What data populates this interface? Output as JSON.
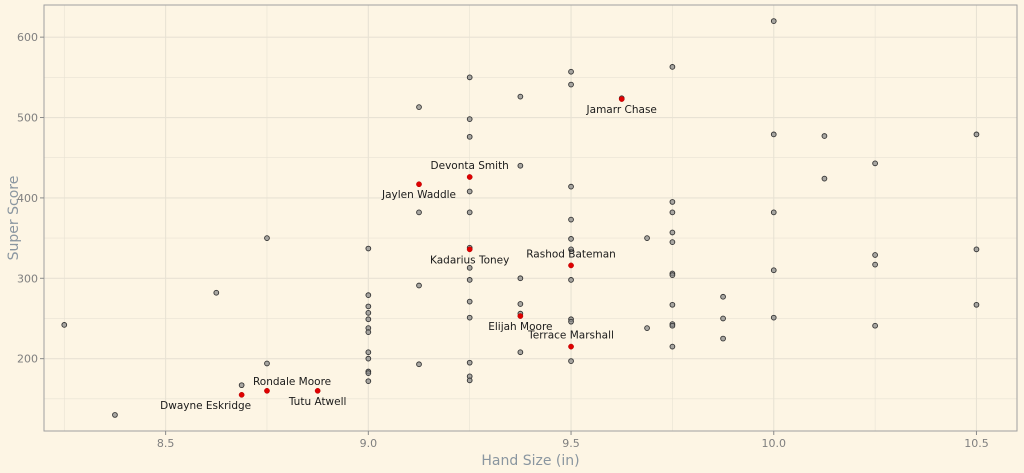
{
  "chart_data": {
    "type": "scatter",
    "title": "",
    "xlabel": "Hand Size (in)",
    "ylabel": "Super Score",
    "xlim": [
      8.2,
      10.6
    ],
    "ylim": [
      110,
      640
    ],
    "x_ticks": [
      8.5,
      9.0,
      9.5,
      10.0,
      10.5
    ],
    "x_tick_labels": [
      "8.5",
      "9.0",
      "9.5",
      "10.0",
      "10.5"
    ],
    "y_ticks": [
      200,
      300,
      400,
      500,
      600
    ],
    "y_tick_labels": [
      "200",
      "300",
      "400",
      "500",
      "600"
    ],
    "grid": true,
    "colors": {
      "background": "#fdf5e4",
      "panel_border": "#a0a0a0",
      "grid": "#e8e2d4",
      "point": "#4a4a4a",
      "highlight": "#e00000"
    },
    "series": [
      {
        "points": [
          {
            "x": 8.25,
            "y": 242
          },
          {
            "x": 8.375,
            "y": 130
          },
          {
            "x": 8.625,
            "y": 282
          },
          {
            "x": 8.6875,
            "y": 167
          },
          {
            "x": 8.75,
            "y": 350
          },
          {
            "x": 8.75,
            "y": 194
          },
          {
            "x": 9.0,
            "y": 337
          },
          {
            "x": 9.0,
            "y": 279
          },
          {
            "x": 9.0,
            "y": 265
          },
          {
            "x": 9.0,
            "y": 257
          },
          {
            "x": 9.0,
            "y": 249
          },
          {
            "x": 9.0,
            "y": 238
          },
          {
            "x": 9.0,
            "y": 233
          },
          {
            "x": 9.0,
            "y": 208
          },
          {
            "x": 9.0,
            "y": 200
          },
          {
            "x": 9.0,
            "y": 184
          },
          {
            "x": 9.0,
            "y": 182
          },
          {
            "x": 9.0,
            "y": 172
          },
          {
            "x": 9.125,
            "y": 513
          },
          {
            "x": 9.125,
            "y": 382
          },
          {
            "x": 9.125,
            "y": 291
          },
          {
            "x": 9.125,
            "y": 193
          },
          {
            "x": 9.25,
            "y": 550
          },
          {
            "x": 9.25,
            "y": 498
          },
          {
            "x": 9.25,
            "y": 476
          },
          {
            "x": 9.25,
            "y": 408
          },
          {
            "x": 9.25,
            "y": 382
          },
          {
            "x": 9.25,
            "y": 338
          },
          {
            "x": 9.25,
            "y": 313
          },
          {
            "x": 9.25,
            "y": 298
          },
          {
            "x": 9.25,
            "y": 271
          },
          {
            "x": 9.25,
            "y": 251
          },
          {
            "x": 9.25,
            "y": 195
          },
          {
            "x": 9.25,
            "y": 178
          },
          {
            "x": 9.25,
            "y": 173
          },
          {
            "x": 9.375,
            "y": 526
          },
          {
            "x": 9.375,
            "y": 440
          },
          {
            "x": 9.375,
            "y": 300
          },
          {
            "x": 9.375,
            "y": 268
          },
          {
            "x": 9.375,
            "y": 256
          },
          {
            "x": 9.375,
            "y": 208
          },
          {
            "x": 9.5,
            "y": 557
          },
          {
            "x": 9.5,
            "y": 541
          },
          {
            "x": 9.5,
            "y": 414
          },
          {
            "x": 9.5,
            "y": 373
          },
          {
            "x": 9.5,
            "y": 349
          },
          {
            "x": 9.5,
            "y": 336
          },
          {
            "x": 9.5,
            "y": 298
          },
          {
            "x": 9.5,
            "y": 249
          },
          {
            "x": 9.5,
            "y": 246
          },
          {
            "x": 9.5,
            "y": 197
          },
          {
            "x": 9.625,
            "y": 524
          },
          {
            "x": 9.6875,
            "y": 350
          },
          {
            "x": 9.6875,
            "y": 238
          },
          {
            "x": 9.75,
            "y": 563
          },
          {
            "x": 9.75,
            "y": 395
          },
          {
            "x": 9.75,
            "y": 382
          },
          {
            "x": 9.75,
            "y": 357
          },
          {
            "x": 9.75,
            "y": 345
          },
          {
            "x": 9.75,
            "y": 306
          },
          {
            "x": 9.75,
            "y": 304
          },
          {
            "x": 9.75,
            "y": 267
          },
          {
            "x": 9.75,
            "y": 243
          },
          {
            "x": 9.75,
            "y": 241
          },
          {
            "x": 9.75,
            "y": 215
          },
          {
            "x": 9.875,
            "y": 277
          },
          {
            "x": 9.875,
            "y": 250
          },
          {
            "x": 9.875,
            "y": 225
          },
          {
            "x": 10.0,
            "y": 620
          },
          {
            "x": 10.0,
            "y": 479
          },
          {
            "x": 10.0,
            "y": 382
          },
          {
            "x": 10.0,
            "y": 310
          },
          {
            "x": 10.0,
            "y": 251
          },
          {
            "x": 10.125,
            "y": 477
          },
          {
            "x": 10.125,
            "y": 424
          },
          {
            "x": 10.25,
            "y": 443
          },
          {
            "x": 10.25,
            "y": 329
          },
          {
            "x": 10.25,
            "y": 317
          },
          {
            "x": 10.25,
            "y": 241
          },
          {
            "x": 10.5,
            "y": 479
          },
          {
            "x": 10.5,
            "y": 336
          },
          {
            "x": 10.5,
            "y": 267
          }
        ]
      },
      {
        "highlight": true,
        "points": [
          {
            "x": 9.625,
            "y": 523,
            "label": "Jamarr Chase",
            "label_pos": "below"
          },
          {
            "x": 9.25,
            "y": 426,
            "label": "Devonta Smith",
            "label_pos": "above"
          },
          {
            "x": 9.125,
            "y": 417,
            "label": "Jaylen Waddle",
            "label_pos": "below"
          },
          {
            "x": 9.25,
            "y": 336,
            "label": "Kadarius Toney",
            "label_pos": "below"
          },
          {
            "x": 9.5,
            "y": 316,
            "label": "Rashod Bateman",
            "label_pos": "above"
          },
          {
            "x": 9.375,
            "y": 253,
            "label": "Elijah Moore",
            "label_pos": "below"
          },
          {
            "x": 9.5,
            "y": 215,
            "label": "Terrace Marshall",
            "label_pos": "above"
          },
          {
            "x": 8.75,
            "y": 160,
            "label": "Rondale Moore",
            "label_pos": "above-right"
          },
          {
            "x": 8.6875,
            "y": 155,
            "label": "Dwayne Eskridge",
            "label_pos": "below-left"
          },
          {
            "x": 8.875,
            "y": 160,
            "label": "Tutu Atwell",
            "label_pos": "below"
          }
        ]
      }
    ]
  }
}
